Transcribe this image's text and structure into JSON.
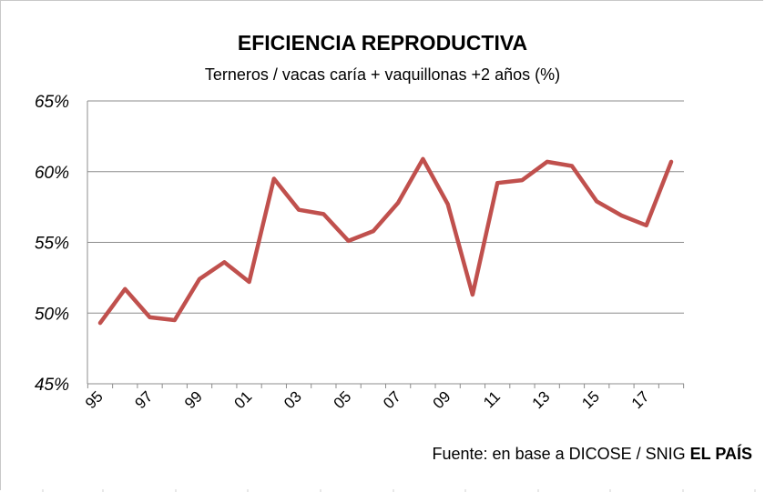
{
  "chart_data": {
    "type": "line",
    "title": "EFICIENCIA REPRODUCTIVA",
    "subtitle": "Terneros / vacas caría + vaquillonas +2 años (%)",
    "xlabel": "",
    "ylabel": "",
    "ylim": [
      45,
      65
    ],
    "yticks": [
      45,
      50,
      55,
      60,
      65
    ],
    "ytick_labels": [
      "45%",
      "50%",
      "55%",
      "60%",
      "65%"
    ],
    "x": [
      "95",
      "96",
      "97",
      "98",
      "99",
      "00",
      "01",
      "02",
      "03",
      "04",
      "05",
      "06",
      "07",
      "08",
      "09",
      "10",
      "11",
      "12",
      "13",
      "14",
      "15",
      "16",
      "17",
      "18"
    ],
    "xtick_labels": [
      "95",
      "97",
      "99",
      "01",
      "03",
      "05",
      "07",
      "09",
      "11",
      "13",
      "15",
      "17"
    ],
    "series": [
      {
        "values": [
          49.3,
          51.7,
          49.7,
          49.5,
          52.4,
          53.6,
          52.2,
          59.5,
          57.3,
          57.0,
          55.1,
          55.8,
          57.8,
          60.9,
          57.7,
          51.3,
          59.2,
          59.4,
          60.7,
          60.4,
          57.9,
          56.9,
          56.2,
          60.7
        ]
      }
    ],
    "line_color": "#c0504d",
    "grid": true,
    "legend": "none"
  },
  "source": {
    "text": "Fuente: en base a DICOSE / SNIG ",
    "brand": "EL PAÍS"
  }
}
